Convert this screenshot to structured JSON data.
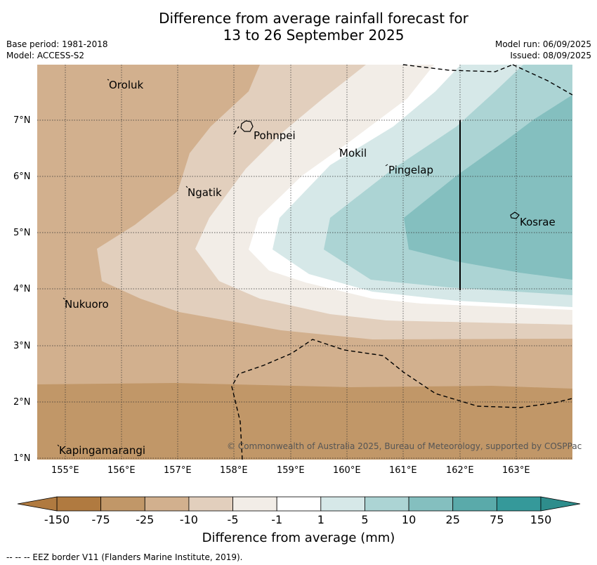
{
  "title_line1": "Difference from average rainfall forecast for",
  "title_line2": "13 to 26 September 2025",
  "meta": {
    "base_period": "Base period: 1981-2018",
    "model": "Model: ACCESS-S2",
    "model_run": "Model run: 06/09/2025",
    "issued": "Issued: 08/09/2025"
  },
  "map": {
    "lon_range": [
      154.5,
      164.0
    ],
    "lat_range": [
      1.0,
      8.0
    ],
    "x_ticks": [
      "155°E",
      "156°E",
      "157°E",
      "158°E",
      "159°E",
      "160°E",
      "161°E",
      "162°E",
      "163°E"
    ],
    "y_ticks": [
      "1°N",
      "2°N",
      "3°N",
      "4°N",
      "5°N",
      "6°N",
      "7°N"
    ],
    "places": [
      {
        "name": "Oroluk",
        "lon": 155.7,
        "lat": 7.6
      },
      {
        "name": "Pohnpei",
        "lon": 158.3,
        "lat": 6.8
      },
      {
        "name": "Mokil",
        "lon": 159.85,
        "lat": 6.4
      },
      {
        "name": "Pingelap",
        "lon": 160.7,
        "lat": 6.15
      },
      {
        "name": "Ngatik",
        "lon": 157.15,
        "lat": 5.75
      },
      {
        "name": "Kosrae",
        "lon": 163.0,
        "lat": 5.2
      },
      {
        "name": "Nukuoro",
        "lon": 154.95,
        "lat": 3.75
      },
      {
        "name": "Kapingamarangi",
        "lon": 154.85,
        "lat": 1.1
      }
    ],
    "copyright": "© Commonwealth of Australia 2025, Bureau of Meteorology, supported by COSPPac"
  },
  "colorbar": {
    "title": "Difference from average (mm)",
    "ticks": [
      "-150",
      "-75",
      "-25",
      "-10",
      "-5",
      "-1",
      "1",
      "5",
      "10",
      "25",
      "75",
      "150"
    ],
    "colors": [
      "#b07a40",
      "#c19768",
      "#d2b08e",
      "#e2cfbd",
      "#f2ede7",
      "#ffffff",
      "#d6e8e8",
      "#acd4d4",
      "#84bfbf",
      "#5aaaaa",
      "#35999a"
    ],
    "end_low": "#b07a40",
    "end_high": "#2e8d8c"
  },
  "eez_note": "--  --  -- EEZ border V11 (Flanders Marine Institute, 2019)."
}
